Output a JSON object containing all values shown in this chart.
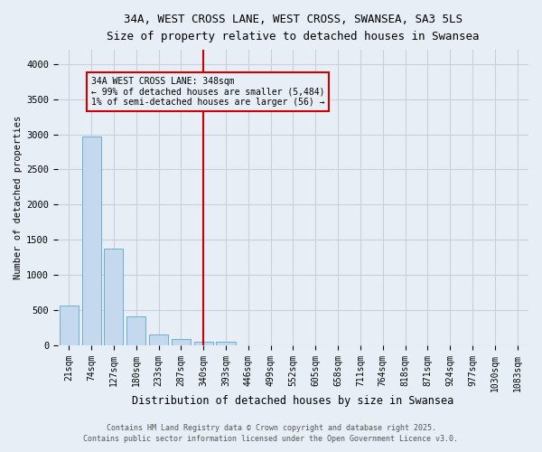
{
  "title_line1": "34A, WEST CROSS LANE, WEST CROSS, SWANSEA, SA3 5LS",
  "title_line2": "Size of property relative to detached houses in Swansea",
  "xlabel": "Distribution of detached houses by size in Swansea",
  "ylabel": "Number of detached properties",
  "categories": [
    "21sqm",
    "74sqm",
    "127sqm",
    "180sqm",
    "233sqm",
    "287sqm",
    "340sqm",
    "393sqm",
    "446sqm",
    "499sqm",
    "552sqm",
    "605sqm",
    "658sqm",
    "711sqm",
    "764sqm",
    "818sqm",
    "871sqm",
    "924sqm",
    "977sqm",
    "1030sqm",
    "1083sqm"
  ],
  "bar_heights": [
    560,
    2970,
    1370,
    410,
    160,
    90,
    50,
    55,
    0,
    0,
    0,
    0,
    0,
    0,
    0,
    0,
    0,
    0,
    0,
    0,
    0
  ],
  "bar_color": "#c5d9ee",
  "bar_edge_color": "#6aaed6",
  "grid_color": "#c8d0dc",
  "bg_color": "#e8eef5",
  "vline_x_idx": 6,
  "vline_color": "#cc0000",
  "annotation_text": "34A WEST CROSS LANE: 348sqm\n← 99% of detached houses are smaller (5,484)\n1% of semi-detached houses are larger (56) →",
  "annotation_box_color": "#cc0000",
  "ylim": [
    0,
    4200
  ],
  "yticks": [
    0,
    500,
    1000,
    1500,
    2000,
    2500,
    3000,
    3500,
    4000
  ],
  "footer_line1": "Contains HM Land Registry data © Crown copyright and database right 2025.",
  "footer_line2": "Contains public sector information licensed under the Open Government Licence v3.0."
}
